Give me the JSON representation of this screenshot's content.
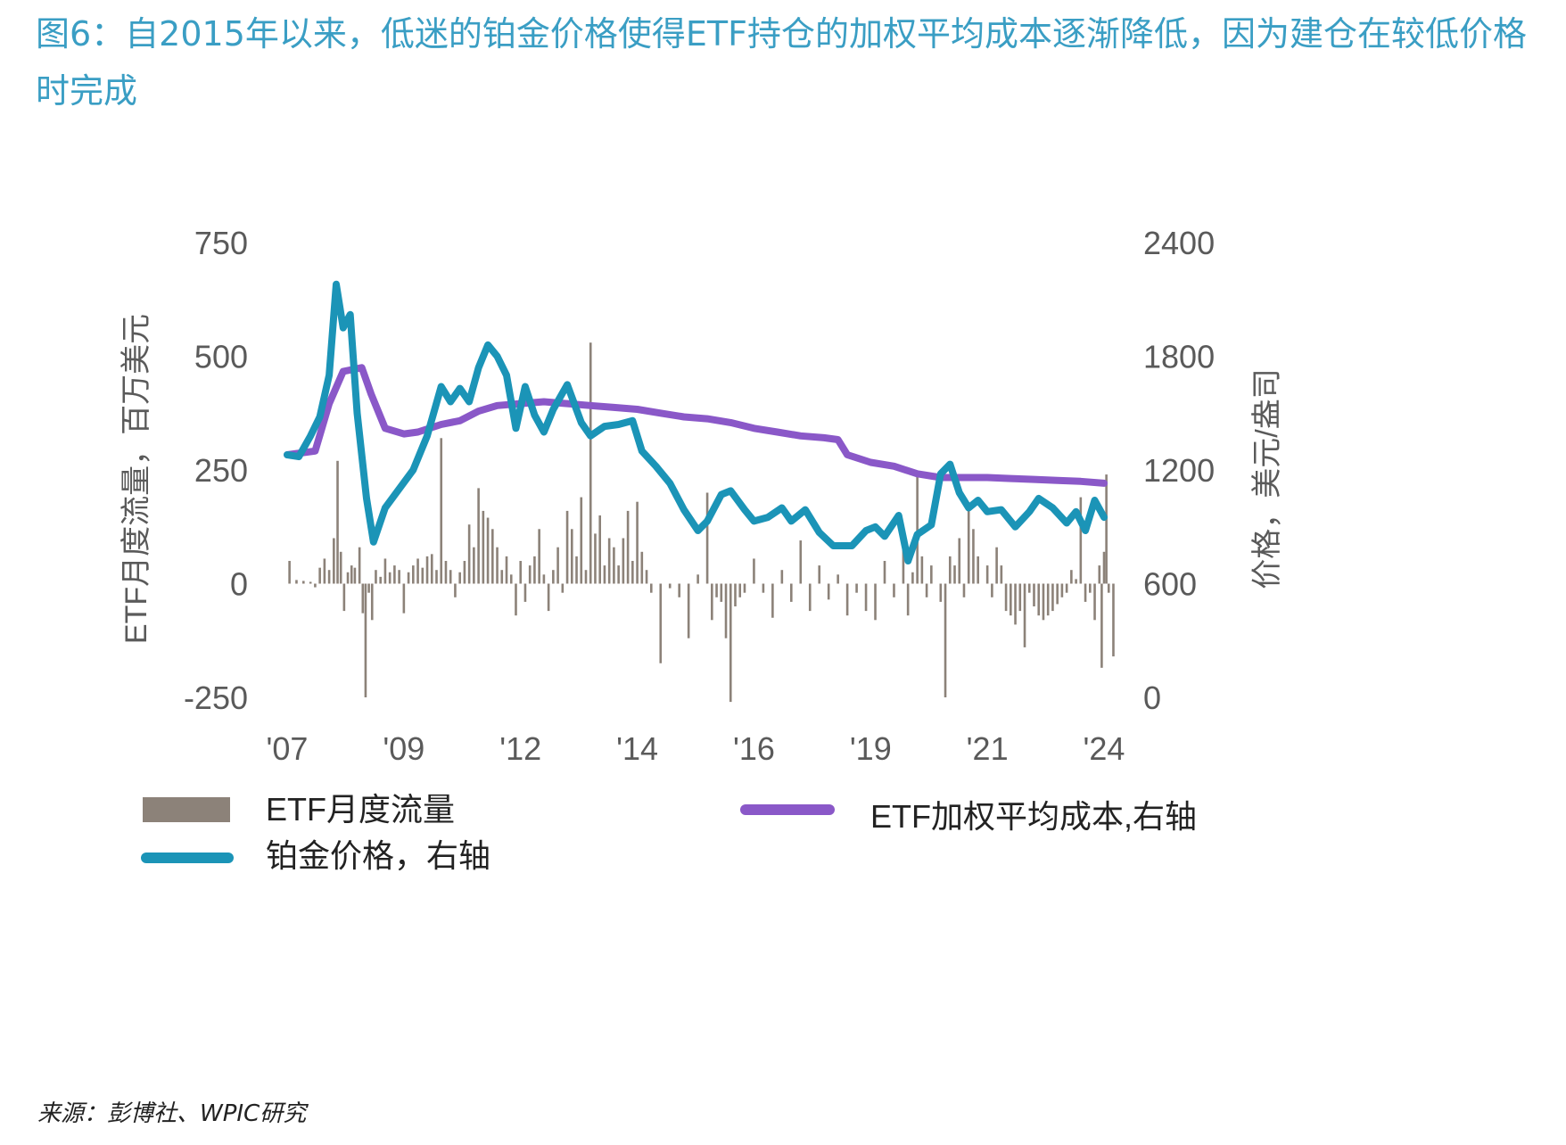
{
  "figure": {
    "title": "图6：自2015年以来，低迷的铂金价格使得ETF持仓的加权平均成本逐渐降低，因为建仓在较低价格时完成",
    "source": "来源：彭博社、WPIC研究"
  },
  "colors": {
    "flow": "#8c8279",
    "price": "#1b94b7",
    "cost": "#8a58c8",
    "title": "#3a9ec4",
    "axis_text": "#5a5a5a"
  },
  "chart_data": {
    "type": "bar+line",
    "x_range": [
      2007,
      2024.5
    ],
    "x_tick_values": [
      2007,
      2009.5,
      2012,
      2014.5,
      2017,
      2019.5,
      2022,
      2024.5
    ],
    "x_tick_labels": [
      "'07",
      "'09",
      "'12",
      "'14",
      "'16",
      "'19",
      "'21",
      "'24"
    ],
    "left_axis": {
      "label": "ETF月度流量，百万美元",
      "range": [
        -250,
        750
      ],
      "ticks": [
        "750",
        "500",
        "250",
        "0",
        "-250"
      ],
      "tick_values": [
        750,
        500,
        250,
        0,
        -250
      ]
    },
    "right_axis": {
      "label": "价格，美元/盎司",
      "range": [
        0,
        2400
      ],
      "ticks": [
        "2400",
        "1800",
        "1200",
        "600",
        "0"
      ],
      "tick_values": [
        2400,
        1800,
        1200,
        600,
        0
      ]
    },
    "legend": [
      {
        "key": "flow",
        "label": "ETF月度流量"
      },
      {
        "key": "price",
        "label": "铂金价格，右轴"
      },
      {
        "key": "cost",
        "label": "ETF加权平均成本,右轴"
      }
    ],
    "series": [
      {
        "name": "铂金价格，右轴",
        "axis": "right",
        "type": "line",
        "points": [
          [
            2007,
            1280
          ],
          [
            2007.25,
            1270
          ],
          [
            2007.5,
            1380
          ],
          [
            2007.7,
            1480
          ],
          [
            2007.9,
            1700
          ],
          [
            2008.05,
            2180
          ],
          [
            2008.2,
            1950
          ],
          [
            2008.35,
            2020
          ],
          [
            2008.5,
            1500
          ],
          [
            2008.7,
            1050
          ],
          [
            2008.85,
            820
          ],
          [
            2009.1,
            1000
          ],
          [
            2009.4,
            1100
          ],
          [
            2009.7,
            1200
          ],
          [
            2010,
            1380
          ],
          [
            2010.3,
            1640
          ],
          [
            2010.5,
            1560
          ],
          [
            2010.7,
            1630
          ],
          [
            2010.9,
            1560
          ],
          [
            2011.1,
            1740
          ],
          [
            2011.3,
            1860
          ],
          [
            2011.5,
            1800
          ],
          [
            2011.7,
            1700
          ],
          [
            2011.9,
            1420
          ],
          [
            2012.1,
            1640
          ],
          [
            2012.3,
            1490
          ],
          [
            2012.5,
            1400
          ],
          [
            2012.7,
            1520
          ],
          [
            2013,
            1650
          ],
          [
            2013.3,
            1450
          ],
          [
            2013.5,
            1380
          ],
          [
            2013.8,
            1430
          ],
          [
            2014.1,
            1440
          ],
          [
            2014.4,
            1460
          ],
          [
            2014.6,
            1300
          ],
          [
            2014.9,
            1220
          ],
          [
            2015.2,
            1130
          ],
          [
            2015.5,
            990
          ],
          [
            2015.8,
            880
          ],
          [
            2016,
            930
          ],
          [
            2016.3,
            1070
          ],
          [
            2016.5,
            1090
          ],
          [
            2016.8,
            990
          ],
          [
            2017,
            930
          ],
          [
            2017.3,
            950
          ],
          [
            2017.6,
            1000
          ],
          [
            2017.8,
            930
          ],
          [
            2018.1,
            990
          ],
          [
            2018.4,
            870
          ],
          [
            2018.7,
            800
          ],
          [
            2019.1,
            800
          ],
          [
            2019.4,
            880
          ],
          [
            2019.6,
            900
          ],
          [
            2019.8,
            850
          ],
          [
            2020.1,
            960
          ],
          [
            2020.3,
            720
          ],
          [
            2020.5,
            860
          ],
          [
            2020.8,
            910
          ],
          [
            2021,
            1180
          ],
          [
            2021.2,
            1230
          ],
          [
            2021.4,
            1080
          ],
          [
            2021.6,
            1000
          ],
          [
            2021.8,
            1040
          ],
          [
            2022,
            980
          ],
          [
            2022.3,
            990
          ],
          [
            2022.6,
            900
          ],
          [
            2022.9,
            980
          ],
          [
            2023.1,
            1050
          ],
          [
            2023.4,
            1000
          ],
          [
            2023.7,
            920
          ],
          [
            2023.9,
            980
          ],
          [
            2024.1,
            880
          ],
          [
            2024.3,
            1040
          ],
          [
            2024.5,
            950
          ]
        ]
      },
      {
        "name": "ETF加权平均成本,右轴",
        "axis": "right",
        "type": "line",
        "points": [
          [
            2007,
            1280
          ],
          [
            2007.6,
            1300
          ],
          [
            2007.9,
            1550
          ],
          [
            2008.2,
            1720
          ],
          [
            2008.6,
            1740
          ],
          [
            2008.8,
            1600
          ],
          [
            2009.1,
            1420
          ],
          [
            2009.5,
            1390
          ],
          [
            2009.8,
            1400
          ],
          [
            2010.3,
            1440
          ],
          [
            2010.7,
            1460
          ],
          [
            2011.1,
            1510
          ],
          [
            2011.5,
            1540
          ],
          [
            2012,
            1550
          ],
          [
            2012.5,
            1560
          ],
          [
            2013,
            1550
          ],
          [
            2013.5,
            1540
          ],
          [
            2014,
            1530
          ],
          [
            2014.5,
            1520
          ],
          [
            2015,
            1500
          ],
          [
            2015.5,
            1480
          ],
          [
            2016,
            1470
          ],
          [
            2016.5,
            1450
          ],
          [
            2017,
            1420
          ],
          [
            2017.5,
            1400
          ],
          [
            2018,
            1380
          ],
          [
            2018.5,
            1370
          ],
          [
            2018.8,
            1360
          ],
          [
            2019,
            1280
          ],
          [
            2019.5,
            1240
          ],
          [
            2020,
            1220
          ],
          [
            2020.5,
            1180
          ],
          [
            2021,
            1160
          ],
          [
            2021.5,
            1160
          ],
          [
            2022,
            1160
          ],
          [
            2022.5,
            1155
          ],
          [
            2023,
            1150
          ],
          [
            2023.5,
            1145
          ],
          [
            2024,
            1140
          ],
          [
            2024.5,
            1130
          ]
        ]
      },
      {
        "name": "ETF月度流量",
        "axis": "left",
        "type": "bar",
        "points": [
          [
            2007.05,
            50
          ],
          [
            2007.2,
            8
          ],
          [
            2007.35,
            6
          ],
          [
            2007.5,
            4
          ],
          [
            2007.6,
            -8
          ],
          [
            2007.7,
            35
          ],
          [
            2007.8,
            55
          ],
          [
            2007.9,
            30
          ],
          [
            2008,
            100
          ],
          [
            2008.08,
            270
          ],
          [
            2008.15,
            70
          ],
          [
            2008.22,
            -60
          ],
          [
            2008.3,
            25
          ],
          [
            2008.38,
            40
          ],
          [
            2008.45,
            35
          ],
          [
            2008.55,
            80
          ],
          [
            2008.62,
            -65
          ],
          [
            2008.68,
            -250
          ],
          [
            2008.75,
            -20
          ],
          [
            2008.82,
            -80
          ],
          [
            2008.9,
            30
          ],
          [
            2009,
            15
          ],
          [
            2009.1,
            55
          ],
          [
            2009.2,
            25
          ],
          [
            2009.3,
            40
          ],
          [
            2009.4,
            30
          ],
          [
            2009.5,
            -65
          ],
          [
            2009.6,
            25
          ],
          [
            2009.7,
            40
          ],
          [
            2009.8,
            55
          ],
          [
            2009.9,
            35
          ],
          [
            2010,
            60
          ],
          [
            2010.1,
            65
          ],
          [
            2010.2,
            30
          ],
          [
            2010.3,
            320
          ],
          [
            2010.4,
            50
          ],
          [
            2010.5,
            30
          ],
          [
            2010.6,
            -30
          ],
          [
            2010.7,
            25
          ],
          [
            2010.8,
            50
          ],
          [
            2010.9,
            130
          ],
          [
            2011,
            80
          ],
          [
            2011.1,
            210
          ],
          [
            2011.2,
            160
          ],
          [
            2011.3,
            145
          ],
          [
            2011.4,
            120
          ],
          [
            2011.5,
            80
          ],
          [
            2011.6,
            30
          ],
          [
            2011.7,
            60
          ],
          [
            2011.8,
            20
          ],
          [
            2011.9,
            -70
          ],
          [
            2012,
            50
          ],
          [
            2012.1,
            -40
          ],
          [
            2012.2,
            40
          ],
          [
            2012.3,
            60
          ],
          [
            2012.4,
            120
          ],
          [
            2012.5,
            20
          ],
          [
            2012.6,
            -60
          ],
          [
            2012.7,
            30
          ],
          [
            2012.8,
            80
          ],
          [
            2012.9,
            -20
          ],
          [
            2013,
            160
          ],
          [
            2013.1,
            120
          ],
          [
            2013.2,
            60
          ],
          [
            2013.3,
            190
          ],
          [
            2013.4,
            30
          ],
          [
            2013.5,
            530
          ],
          [
            2013.6,
            110
          ],
          [
            2013.7,
            150
          ],
          [
            2013.8,
            40
          ],
          [
            2013.9,
            100
          ],
          [
            2014,
            80
          ],
          [
            2014.1,
            40
          ],
          [
            2014.2,
            100
          ],
          [
            2014.3,
            160
          ],
          [
            2014.4,
            50
          ],
          [
            2014.5,
            180
          ],
          [
            2014.6,
            70
          ],
          [
            2014.7,
            30
          ],
          [
            2014.8,
            -20
          ],
          [
            2015,
            -175
          ],
          [
            2015.2,
            -10
          ],
          [
            2015.4,
            -30
          ],
          [
            2015.6,
            -120
          ],
          [
            2015.8,
            20
          ],
          [
            2016,
            200
          ],
          [
            2016.1,
            -80
          ],
          [
            2016.2,
            -30
          ],
          [
            2016.3,
            -40
          ],
          [
            2016.4,
            -120
          ],
          [
            2016.5,
            -260
          ],
          [
            2016.6,
            -50
          ],
          [
            2016.7,
            -30
          ],
          [
            2016.8,
            -20
          ],
          [
            2017,
            55
          ],
          [
            2017.2,
            -20
          ],
          [
            2017.4,
            -75
          ],
          [
            2017.6,
            30
          ],
          [
            2017.8,
            -40
          ],
          [
            2018,
            95
          ],
          [
            2018.2,
            -60
          ],
          [
            2018.4,
            40
          ],
          [
            2018.6,
            -35
          ],
          [
            2018.8,
            20
          ],
          [
            2019,
            -70
          ],
          [
            2019.2,
            -20
          ],
          [
            2019.4,
            -60
          ],
          [
            2019.6,
            -80
          ],
          [
            2019.8,
            50
          ],
          [
            2020,
            -30
          ],
          [
            2020.2,
            120
          ],
          [
            2020.3,
            -70
          ],
          [
            2020.4,
            25
          ],
          [
            2020.5,
            235
          ],
          [
            2020.6,
            60
          ],
          [
            2020.7,
            -30
          ],
          [
            2020.8,
            40
          ],
          [
            2021,
            -40
          ],
          [
            2021.1,
            -250
          ],
          [
            2021.2,
            60
          ],
          [
            2021.3,
            40
          ],
          [
            2021.4,
            100
          ],
          [
            2021.5,
            -30
          ],
          [
            2021.6,
            170
          ],
          [
            2021.7,
            120
          ],
          [
            2021.8,
            60
          ],
          [
            2022,
            40
          ],
          [
            2022.1,
            -30
          ],
          [
            2022.2,
            80
          ],
          [
            2022.3,
            40
          ],
          [
            2022.4,
            -60
          ],
          [
            2022.5,
            -70
          ],
          [
            2022.6,
            -90
          ],
          [
            2022.7,
            -60
          ],
          [
            2022.8,
            -140
          ],
          [
            2022.9,
            -20
          ],
          [
            2023,
            -50
          ],
          [
            2023.1,
            -70
          ],
          [
            2023.2,
            -80
          ],
          [
            2023.3,
            -70
          ],
          [
            2023.4,
            -60
          ],
          [
            2023.5,
            -45
          ],
          [
            2023.6,
            -30
          ],
          [
            2023.7,
            -20
          ],
          [
            2023.8,
            30
          ],
          [
            2023.9,
            10
          ],
          [
            2024,
            190
          ],
          [
            2024.1,
            -40
          ],
          [
            2024.2,
            -20
          ],
          [
            2024.3,
            -80
          ],
          [
            2024.4,
            40
          ],
          [
            2024.45,
            -185
          ],
          [
            2024.5,
            70
          ],
          [
            2024.55,
            240
          ],
          [
            2024.6,
            -20
          ],
          [
            2024.7,
            -160
          ]
        ]
      }
    ]
  }
}
